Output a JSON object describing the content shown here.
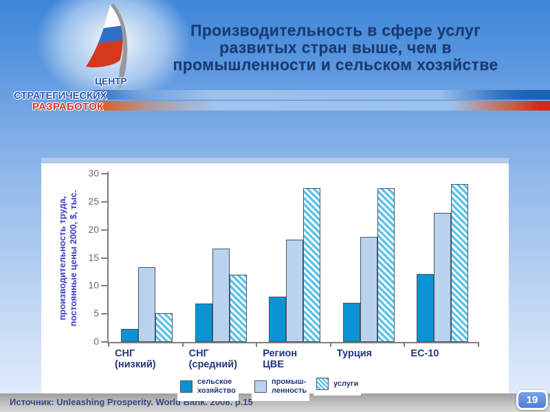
{
  "slide": {
    "title": "Производительность в сфере услуг\nразвитых стран выше, чем в\nпромышленности и сельском хозяйстве",
    "logo": {
      "line1": "ЦЕНТР",
      "line2": "СТРАТЕГИЧЕСКИХ",
      "line3": "РАЗРАБОТОК"
    },
    "footer": {
      "source": "Источник: Unleashing Prosperity. World Bank. 2008. p.15",
      "page_number": "19"
    },
    "colors": {
      "background_top": "#3f86d9",
      "background_bottom": "#e6eefc",
      "title_text": "#1a3a74",
      "right_band_blue": "#1a63b5",
      "right_band_red": "#d3291a",
      "footer_strip": "#bcbcbc",
      "page_badge": "#4e7ed6"
    }
  },
  "chart_data": {
    "type": "bar",
    "title": "",
    "ylabel": "производительность труда,\nпостоянные цены 2000, $, тыс.",
    "xlabel": "",
    "ylim": [
      0,
      30
    ],
    "ytick_step": 5,
    "grid": false,
    "legend_position": "bottom",
    "categories": [
      "СНГ\n(низкий)",
      "СНГ\n(средний)",
      "Регион\nЦВЕ",
      "Турция",
      "ЕС-10"
    ],
    "series": [
      {
        "key": "agriculture",
        "name": "сельское хозяйство",
        "legend_label": "сельское\nхозяйство",
        "style": "solid",
        "color": "#0a93d3",
        "values": [
          2.3,
          6.9,
          8.1,
          7.0,
          12.1
        ]
      },
      {
        "key": "industry",
        "name": "промышленность",
        "legend_label": "промыш-\nленность",
        "style": "solid",
        "color": "#b9d3ee",
        "values": [
          13.4,
          16.7,
          18.2,
          18.7,
          23.0
        ]
      },
      {
        "key": "services",
        "name": "услуги",
        "legend_label": "услуги",
        "style": "hatched",
        "color": "#5ec2e7",
        "values": [
          5.2,
          12.0,
          27.4,
          27.4,
          28.2
        ]
      }
    ]
  }
}
